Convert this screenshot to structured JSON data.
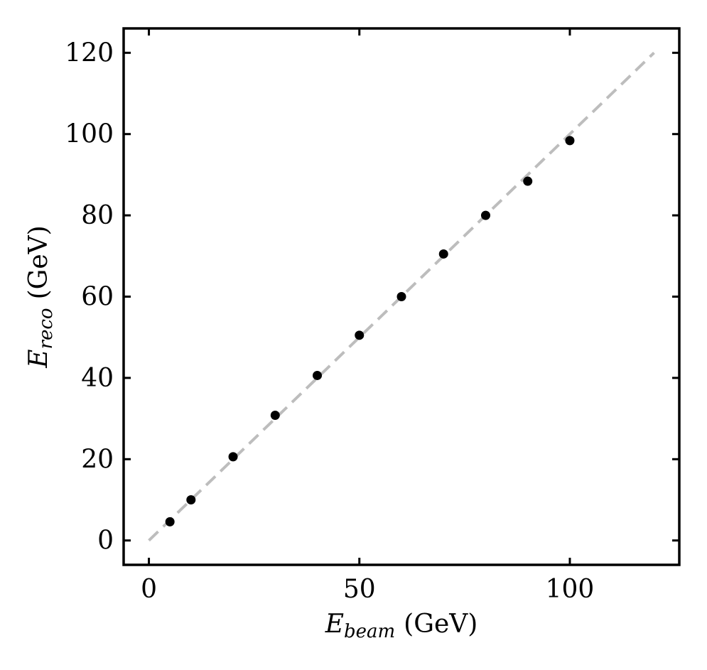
{
  "chart_data": {
    "type": "scatter",
    "x": [
      5,
      10,
      20,
      30,
      40,
      50,
      60,
      70,
      80,
      90,
      100
    ],
    "y": [
      4.6,
      10.0,
      20.6,
      30.8,
      40.6,
      50.5,
      60.0,
      70.5,
      80.0,
      88.4,
      98.4
    ],
    "marker_color": "#000000",
    "reference_line": {
      "x": [
        0,
        120
      ],
      "y": [
        0,
        120
      ],
      "style": "dashed",
      "color": "#bdbdbd"
    },
    "xlim": [
      -6,
      126
    ],
    "ylim": [
      -6,
      126
    ],
    "xticks": [
      0,
      50,
      100
    ],
    "yticks": [
      0,
      20,
      40,
      60,
      80,
      100,
      120
    ],
    "xlabel": {
      "symbol": "E",
      "subscript": "beam",
      "unit": "(GeV)"
    },
    "ylabel": {
      "symbol": "E",
      "subscript": "reco",
      "unit": "(GeV)"
    },
    "grid": false,
    "legend": false
  }
}
